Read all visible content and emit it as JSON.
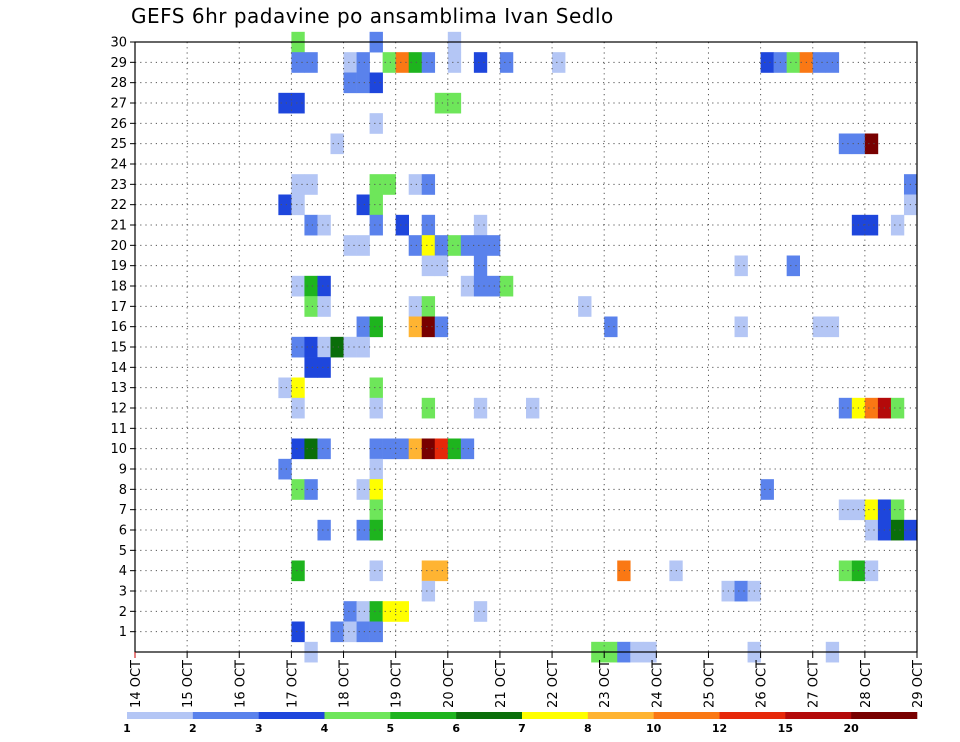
{
  "title": "GEFS 6hr padavine po ansamblima Ivan Sedlo",
  "chart_data": {
    "type": "heatmap",
    "title": "GEFS 6hr padavine po ansamblima Ivan Sedlo",
    "x_dates": [
      "14 OCT",
      "15 OCT",
      "16 OCT",
      "17 OCT",
      "18 OCT",
      "19 OCT",
      "20 OCT",
      "21 OCT",
      "22 OCT",
      "23 OCT",
      "24 OCT",
      "25 OCT",
      "26 OCT",
      "27 OCT",
      "28 OCT",
      "29 OCT"
    ],
    "x_step_hours": 6,
    "y_members": [
      1,
      2,
      3,
      4,
      5,
      6,
      7,
      8,
      9,
      10,
      11,
      12,
      13,
      14,
      15,
      16,
      17,
      18,
      19,
      20,
      21,
      22,
      23,
      24,
      25,
      26,
      27,
      28,
      29,
      30
    ],
    "y_range": [
      0,
      30
    ],
    "grid": true,
    "color_levels": [
      1,
      2,
      3,
      4,
      5,
      6,
      7,
      8,
      10,
      12,
      15,
      20
    ],
    "colors": [
      "#b4c6f5",
      "#5a82ec",
      "#1e46dc",
      "#6ee65a",
      "#1eb41e",
      "#0a6e0a",
      "#ffff00",
      "#ffb432",
      "#fa7814",
      "#e6280a",
      "#b40a0a",
      "#780000"
    ],
    "cells": [
      {
        "member": 30,
        "step": 12,
        "level": 4
      },
      {
        "member": 30,
        "step": 18,
        "level": 2
      },
      {
        "member": 30,
        "step": 24,
        "level": 1
      },
      {
        "member": 29,
        "step": 12,
        "level": 2
      },
      {
        "member": 29,
        "step": 13,
        "level": 2
      },
      {
        "member": 29,
        "step": 16,
        "level": 1
      },
      {
        "member": 29,
        "step": 17,
        "level": 2
      },
      {
        "member": 29,
        "step": 19,
        "level": 4
      },
      {
        "member": 29,
        "step": 20,
        "level": 9
      },
      {
        "member": 29,
        "step": 21,
        "level": 5
      },
      {
        "member": 29,
        "step": 22,
        "level": 2
      },
      {
        "member": 29,
        "step": 24,
        "level": 1
      },
      {
        "member": 29,
        "step": 26,
        "level": 3
      },
      {
        "member": 29,
        "step": 28,
        "level": 2
      },
      {
        "member": 29,
        "step": 32,
        "level": 1
      },
      {
        "member": 29,
        "step": 48,
        "level": 3
      },
      {
        "member": 29,
        "step": 49,
        "level": 2
      },
      {
        "member": 29,
        "step": 50,
        "level": 4
      },
      {
        "member": 29,
        "step": 51,
        "level": 9
      },
      {
        "member": 29,
        "step": 52,
        "level": 2
      },
      {
        "member": 29,
        "step": 53,
        "level": 2
      },
      {
        "member": 28,
        "step": 16,
        "level": 2
      },
      {
        "member": 28,
        "step": 17,
        "level": 2
      },
      {
        "member": 28,
        "step": 18,
        "level": 3
      },
      {
        "member": 27,
        "step": 11,
        "level": 3
      },
      {
        "member": 27,
        "step": 12,
        "level": 3
      },
      {
        "member": 27,
        "step": 23,
        "level": 4
      },
      {
        "member": 27,
        "step": 24,
        "level": 4
      },
      {
        "member": 26,
        "step": 18,
        "level": 1
      },
      {
        "member": 25,
        "step": 15,
        "level": 1
      },
      {
        "member": 25,
        "step": 54,
        "level": 2
      },
      {
        "member": 25,
        "step": 55,
        "level": 2
      },
      {
        "member": 25,
        "step": 56,
        "level": 12
      },
      {
        "member": 23,
        "step": 12,
        "level": 1
      },
      {
        "member": 23,
        "step": 13,
        "level": 1
      },
      {
        "member": 23,
        "step": 18,
        "level": 4
      },
      {
        "member": 23,
        "step": 19,
        "level": 4
      },
      {
        "member": 23,
        "step": 21,
        "level": 1
      },
      {
        "member": 23,
        "step": 22,
        "level": 2
      },
      {
        "member": 23,
        "step": 59,
        "level": 2
      },
      {
        "member": 22,
        "step": 11,
        "level": 3
      },
      {
        "member": 22,
        "step": 12,
        "level": 1
      },
      {
        "member": 22,
        "step": 17,
        "level": 3
      },
      {
        "member": 22,
        "step": 18,
        "level": 4
      },
      {
        "member": 22,
        "step": 59,
        "level": 1
      },
      {
        "member": 21,
        "step": 13,
        "level": 2
      },
      {
        "member": 21,
        "step": 14,
        "level": 1
      },
      {
        "member": 21,
        "step": 18,
        "level": 2
      },
      {
        "member": 21,
        "step": 20,
        "level": 3
      },
      {
        "member": 21,
        "step": 22,
        "level": 2
      },
      {
        "member": 21,
        "step": 26,
        "level": 1
      },
      {
        "member": 21,
        "step": 55,
        "level": 3
      },
      {
        "member": 21,
        "step": 56,
        "level": 3
      },
      {
        "member": 21,
        "step": 58,
        "level": 1
      },
      {
        "member": 20,
        "step": 16,
        "level": 1
      },
      {
        "member": 20,
        "step": 17,
        "level": 1
      },
      {
        "member": 20,
        "step": 21,
        "level": 2
      },
      {
        "member": 20,
        "step": 22,
        "level": 7
      },
      {
        "member": 20,
        "step": 23,
        "level": 2
      },
      {
        "member": 20,
        "step": 24,
        "level": 4
      },
      {
        "member": 20,
        "step": 25,
        "level": 2
      },
      {
        "member": 20,
        "step": 26,
        "level": 2
      },
      {
        "member": 20,
        "step": 27,
        "level": 2
      },
      {
        "member": 19,
        "step": 22,
        "level": 1
      },
      {
        "member": 19,
        "step": 23,
        "level": 1
      },
      {
        "member": 19,
        "step": 26,
        "level": 2
      },
      {
        "member": 19,
        "step": 46,
        "level": 1
      },
      {
        "member": 19,
        "step": 50,
        "level": 2
      },
      {
        "member": 18,
        "step": 12,
        "level": 1
      },
      {
        "member": 18,
        "step": 13,
        "level": 5
      },
      {
        "member": 18,
        "step": 14,
        "level": 3
      },
      {
        "member": 18,
        "step": 25,
        "level": 1
      },
      {
        "member": 18,
        "step": 26,
        "level": 2
      },
      {
        "member": 18,
        "step": 27,
        "level": 2
      },
      {
        "member": 18,
        "step": 28,
        "level": 4
      },
      {
        "member": 17,
        "step": 13,
        "level": 4
      },
      {
        "member": 17,
        "step": 14,
        "level": 1
      },
      {
        "member": 17,
        "step": 21,
        "level": 1
      },
      {
        "member": 17,
        "step": 22,
        "level": 4
      },
      {
        "member": 17,
        "step": 34,
        "level": 1
      },
      {
        "member": 16,
        "step": 17,
        "level": 2
      },
      {
        "member": 16,
        "step": 18,
        "level": 5
      },
      {
        "member": 16,
        "step": 21,
        "level": 8
      },
      {
        "member": 16,
        "step": 22,
        "level": 12
      },
      {
        "member": 16,
        "step": 23,
        "level": 2
      },
      {
        "member": 16,
        "step": 36,
        "level": 2
      },
      {
        "member": 16,
        "step": 46,
        "level": 1
      },
      {
        "member": 16,
        "step": 52,
        "level": 1
      },
      {
        "member": 16,
        "step": 53,
        "level": 1
      },
      {
        "member": 15,
        "step": 12,
        "level": 2
      },
      {
        "member": 15,
        "step": 13,
        "level": 3
      },
      {
        "member": 15,
        "step": 14,
        "level": 1
      },
      {
        "member": 15,
        "step": 15,
        "level": 6
      },
      {
        "member": 15,
        "step": 16,
        "level": 1
      },
      {
        "member": 15,
        "step": 17,
        "level": 1
      },
      {
        "member": 14,
        "step": 13,
        "level": 3
      },
      {
        "member": 14,
        "step": 14,
        "level": 3
      },
      {
        "member": 13,
        "step": 11,
        "level": 1
      },
      {
        "member": 13,
        "step": 12,
        "level": 7
      },
      {
        "member": 13,
        "step": 18,
        "level": 4
      },
      {
        "member": 12,
        "step": 12,
        "level": 1
      },
      {
        "member": 12,
        "step": 18,
        "level": 1
      },
      {
        "member": 12,
        "step": 22,
        "level": 4
      },
      {
        "member": 12,
        "step": 26,
        "level": 1
      },
      {
        "member": 12,
        "step": 30,
        "level": 1
      },
      {
        "member": 12,
        "step": 54,
        "level": 2
      },
      {
        "member": 12,
        "step": 55,
        "level": 7
      },
      {
        "member": 12,
        "step": 56,
        "level": 9
      },
      {
        "member": 12,
        "step": 57,
        "level": 11
      },
      {
        "member": 12,
        "step": 58,
        "level": 4
      },
      {
        "member": 10,
        "step": 12,
        "level": 3
      },
      {
        "member": 10,
        "step": 13,
        "level": 6
      },
      {
        "member": 10,
        "step": 14,
        "level": 2
      },
      {
        "member": 10,
        "step": 18,
        "level": 2
      },
      {
        "member": 10,
        "step": 19,
        "level": 2
      },
      {
        "member": 10,
        "step": 20,
        "level": 2
      },
      {
        "member": 10,
        "step": 21,
        "level": 8
      },
      {
        "member": 10,
        "step": 22,
        "level": 12
      },
      {
        "member": 10,
        "step": 23,
        "level": 10
      },
      {
        "member": 10,
        "step": 24,
        "level": 5
      },
      {
        "member": 10,
        "step": 25,
        "level": 2
      },
      {
        "member": 9,
        "step": 11,
        "level": 2
      },
      {
        "member": 9,
        "step": 18,
        "level": 1
      },
      {
        "member": 8,
        "step": 12,
        "level": 4
      },
      {
        "member": 8,
        "step": 13,
        "level": 2
      },
      {
        "member": 8,
        "step": 17,
        "level": 1
      },
      {
        "member": 8,
        "step": 18,
        "level": 7
      },
      {
        "member": 8,
        "step": 48,
        "level": 2
      },
      {
        "member": 7,
        "step": 18,
        "level": 4
      },
      {
        "member": 7,
        "step": 54,
        "level": 1
      },
      {
        "member": 7,
        "step": 55,
        "level": 1
      },
      {
        "member": 7,
        "step": 56,
        "level": 7
      },
      {
        "member": 7,
        "step": 57,
        "level": 3
      },
      {
        "member": 7,
        "step": 58,
        "level": 4
      },
      {
        "member": 6,
        "step": 14,
        "level": 2
      },
      {
        "member": 6,
        "step": 17,
        "level": 2
      },
      {
        "member": 6,
        "step": 18,
        "level": 5
      },
      {
        "member": 6,
        "step": 56,
        "level": 1
      },
      {
        "member": 6,
        "step": 57,
        "level": 3
      },
      {
        "member": 6,
        "step": 58,
        "level": 6
      },
      {
        "member": 6,
        "step": 59,
        "level": 3
      },
      {
        "member": 4,
        "step": 12,
        "level": 5
      },
      {
        "member": 4,
        "step": 18,
        "level": 1
      },
      {
        "member": 4,
        "step": 22,
        "level": 8
      },
      {
        "member": 4,
        "step": 23,
        "level": 8
      },
      {
        "member": 4,
        "step": 37,
        "level": 9
      },
      {
        "member": 4,
        "step": 41,
        "level": 1
      },
      {
        "member": 4,
        "step": 54,
        "level": 4
      },
      {
        "member": 4,
        "step": 55,
        "level": 5
      },
      {
        "member": 4,
        "step": 56,
        "level": 1
      },
      {
        "member": 3,
        "step": 22,
        "level": 1
      },
      {
        "member": 3,
        "step": 45,
        "level": 1
      },
      {
        "member": 3,
        "step": 46,
        "level": 2
      },
      {
        "member": 3,
        "step": 47,
        "level": 1
      },
      {
        "member": 2,
        "step": 16,
        "level": 2
      },
      {
        "member": 2,
        "step": 17,
        "level": 1
      },
      {
        "member": 2,
        "step": 18,
        "level": 5
      },
      {
        "member": 2,
        "step": 19,
        "level": 7
      },
      {
        "member": 2,
        "step": 20,
        "level": 7
      },
      {
        "member": 2,
        "step": 26,
        "level": 1
      },
      {
        "member": 1,
        "step": 12,
        "level": 3
      },
      {
        "member": 1,
        "step": 15,
        "level": 2
      },
      {
        "member": 1,
        "step": 16,
        "level": 1
      },
      {
        "member": 1,
        "step": 17,
        "level": 2
      },
      {
        "member": 1,
        "step": 18,
        "level": 2
      },
      {
        "member": 0,
        "step": 13,
        "level": 1
      },
      {
        "member": 0,
        "step": 35,
        "level": 4
      },
      {
        "member": 0,
        "step": 36,
        "level": 4
      },
      {
        "member": 0,
        "step": 37,
        "level": 2
      },
      {
        "member": 0,
        "step": 38,
        "level": 1
      },
      {
        "member": 0,
        "step": 39,
        "level": 1
      },
      {
        "member": 0,
        "step": 47,
        "level": 1
      },
      {
        "member": 0,
        "step": 53,
        "level": 1
      }
    ]
  }
}
